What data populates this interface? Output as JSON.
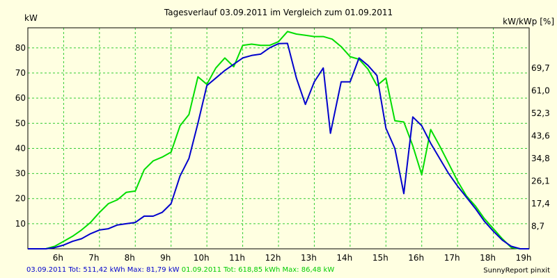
{
  "chart_data": {
    "type": "line",
    "title": "Tagesverlauf 03.09.2011 im Vergleich zum 01.09.2011",
    "ylabel_left": "kW",
    "ylabel_right": "kW/kWp [%]",
    "x_ticks": [
      {
        "label": "6h",
        "x": 6.0
      },
      {
        "label": "7h",
        "x": 7.0
      },
      {
        "label": "8h",
        "x": 8.0
      },
      {
        "label": "9h",
        "x": 9.0
      },
      {
        "label": "10h",
        "x": 10.0
      },
      {
        "label": "11h",
        "x": 11.0
      },
      {
        "label": "12h",
        "x": 12.0
      },
      {
        "label": "13h",
        "x": 13.0
      },
      {
        "label": "14h",
        "x": 14.0
      },
      {
        "label": "15h",
        "x": 15.0
      },
      {
        "label": "16h",
        "x": 16.0
      },
      {
        "label": "17h",
        "x": 17.0
      },
      {
        "label": "18h",
        "x": 18.0
      },
      {
        "label": "19h",
        "x": 19.0
      }
    ],
    "xlim": [
      5.0,
      19.0
    ],
    "ylim": [
      0,
      88
    ],
    "y_ticks_left": [
      {
        "label": "10",
        "y": 10
      },
      {
        "label": "20",
        "y": 20
      },
      {
        "label": "30",
        "y": 30
      },
      {
        "label": "40",
        "y": 40
      },
      {
        "label": "50",
        "y": 50
      },
      {
        "label": "60",
        "y": 60
      },
      {
        "label": "70",
        "y": 70
      },
      {
        "label": "80",
        "y": 80
      }
    ],
    "y_ticks_right": [
      {
        "label": "8,7",
        "y": 9
      },
      {
        "label": "17,4",
        "y": 18
      },
      {
        "label": "26,1",
        "y": 27
      },
      {
        "label": "34,8",
        "y": 36
      },
      {
        "label": "43,6",
        "y": 45
      },
      {
        "label": "52,3",
        "y": 54
      },
      {
        "label": "61,0",
        "y": 63
      },
      {
        "label": "69,7",
        "y": 72
      }
    ],
    "grid": true,
    "series": [
      {
        "name": "03.09.2011",
        "color": "#0000cc",
        "points": [
          [
            5.0,
            0
          ],
          [
            5.5,
            0
          ],
          [
            5.75,
            0.5
          ],
          [
            6.0,
            1.5
          ],
          [
            6.25,
            3
          ],
          [
            6.5,
            4
          ],
          [
            6.75,
            6
          ],
          [
            7.0,
            7.5
          ],
          [
            7.25,
            8
          ],
          [
            7.5,
            9.5
          ],
          [
            7.75,
            10
          ],
          [
            8.0,
            10.5
          ],
          [
            8.25,
            13
          ],
          [
            8.5,
            13
          ],
          [
            8.75,
            14.5
          ],
          [
            9.0,
            18
          ],
          [
            9.25,
            29
          ],
          [
            9.5,
            36
          ],
          [
            9.75,
            50
          ],
          [
            10.0,
            65
          ],
          [
            10.25,
            68
          ],
          [
            10.5,
            71
          ],
          [
            10.75,
            73.5
          ],
          [
            11.0,
            76
          ],
          [
            11.25,
            77
          ],
          [
            11.5,
            77.5
          ],
          [
            11.75,
            80
          ],
          [
            12.0,
            81.7
          ],
          [
            12.25,
            81.8
          ],
          [
            12.5,
            68
          ],
          [
            12.75,
            57.5
          ],
          [
            13.0,
            66.5
          ],
          [
            13.25,
            72
          ],
          [
            13.45,
            46
          ],
          [
            13.75,
            66.5
          ],
          [
            14.0,
            66.5
          ],
          [
            14.25,
            76
          ],
          [
            14.5,
            73
          ],
          [
            14.75,
            69
          ],
          [
            15.0,
            48
          ],
          [
            15.25,
            40
          ],
          [
            15.5,
            22
          ],
          [
            15.75,
            52.5
          ],
          [
            16.0,
            49
          ],
          [
            16.25,
            42
          ],
          [
            16.5,
            36
          ],
          [
            16.75,
            30
          ],
          [
            17.0,
            25
          ],
          [
            17.25,
            20.5
          ],
          [
            17.5,
            16
          ],
          [
            17.75,
            11
          ],
          [
            18.0,
            7
          ],
          [
            18.25,
            3.5
          ],
          [
            18.5,
            1
          ],
          [
            18.75,
            0
          ],
          [
            19.0,
            0
          ]
        ]
      },
      {
        "name": "01.09.2011",
        "color": "#00dd00",
        "points": [
          [
            5.0,
            0
          ],
          [
            5.5,
            0
          ],
          [
            5.75,
            1
          ],
          [
            6.0,
            3
          ],
          [
            6.25,
            5
          ],
          [
            6.5,
            7.5
          ],
          [
            6.75,
            10.5
          ],
          [
            7.0,
            14.5
          ],
          [
            7.25,
            18
          ],
          [
            7.5,
            19.5
          ],
          [
            7.75,
            22.5
          ],
          [
            8.0,
            23
          ],
          [
            8.25,
            31.5
          ],
          [
            8.5,
            35
          ],
          [
            8.75,
            36.5
          ],
          [
            9.0,
            38.5
          ],
          [
            9.25,
            49
          ],
          [
            9.5,
            53.5
          ],
          [
            9.75,
            68.5
          ],
          [
            10.0,
            65.5
          ],
          [
            10.25,
            72
          ],
          [
            10.5,
            76
          ],
          [
            10.75,
            72.5
          ],
          [
            11.0,
            81
          ],
          [
            11.25,
            81.5
          ],
          [
            11.5,
            81
          ],
          [
            11.75,
            81
          ],
          [
            12.0,
            82.5
          ],
          [
            12.25,
            86.5
          ],
          [
            12.5,
            85.5
          ],
          [
            12.75,
            85
          ],
          [
            13.0,
            84.5
          ],
          [
            13.25,
            84.5
          ],
          [
            13.5,
            83.5
          ],
          [
            13.75,
            80.5
          ],
          [
            14.0,
            76.5
          ],
          [
            14.25,
            75.5
          ],
          [
            14.5,
            71.5
          ],
          [
            14.75,
            65
          ],
          [
            15.0,
            68
          ],
          [
            15.25,
            51
          ],
          [
            15.5,
            50.5
          ],
          [
            15.75,
            41
          ],
          [
            16.0,
            29.5
          ],
          [
            16.25,
            47.5
          ],
          [
            16.5,
            41
          ],
          [
            16.75,
            34
          ],
          [
            17.0,
            27
          ],
          [
            17.25,
            21
          ],
          [
            17.5,
            17
          ],
          [
            17.75,
            12
          ],
          [
            18.0,
            8
          ],
          [
            18.25,
            4
          ],
          [
            18.5,
            0.5
          ],
          [
            18.75,
            0
          ],
          [
            19.0,
            0
          ]
        ]
      }
    ]
  },
  "footer": {
    "series1_stats": "03.09.2011 Tot: 511,42 kWh Max: 81,79 kW",
    "series2_stats": "01.09.2011 Tot: 618,85 kWh Max: 86,48 kW",
    "credit": "SunnyReport pinxit"
  },
  "colors": {
    "background": "#ffffe1",
    "plot_background": "#ffffe1",
    "grid": "#33cc33"
  }
}
